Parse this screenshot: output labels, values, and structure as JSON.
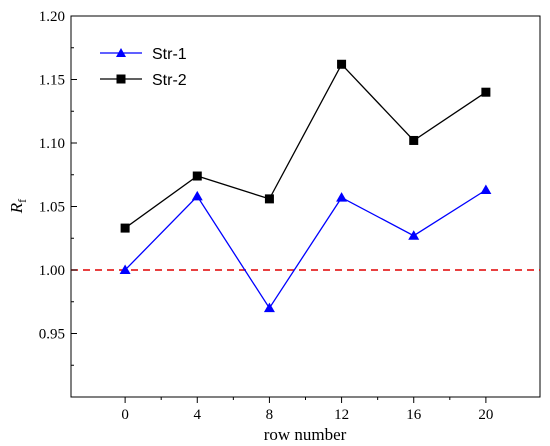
{
  "chart_data": {
    "type": "line",
    "x": [
      0,
      4,
      8,
      12,
      16,
      20
    ],
    "xlabel": "row number",
    "ylabel_main": "R",
    "ylabel_sub": "f",
    "xticks": [
      "0",
      "4",
      "8",
      "12",
      "16",
      "20"
    ],
    "yticks": [
      "0.95",
      "1.00",
      "1.05",
      "1.10",
      "1.15",
      "1.20"
    ],
    "ylim": [
      0.9,
      1.2
    ],
    "series": [
      {
        "name": "Str-1",
        "color": "#0000ff",
        "marker": "triangle",
        "values": [
          1.0,
          1.058,
          0.97,
          1.057,
          1.027,
          1.063
        ]
      },
      {
        "name": "Str-2",
        "color": "#000000",
        "marker": "square",
        "values": [
          1.033,
          1.074,
          1.056,
          1.162,
          1.102,
          1.14
        ]
      }
    ],
    "reference_line": {
      "y": 1.0,
      "color": "#e00000",
      "style": "dashed"
    },
    "legend_position": "top-left",
    "grid": false
  }
}
